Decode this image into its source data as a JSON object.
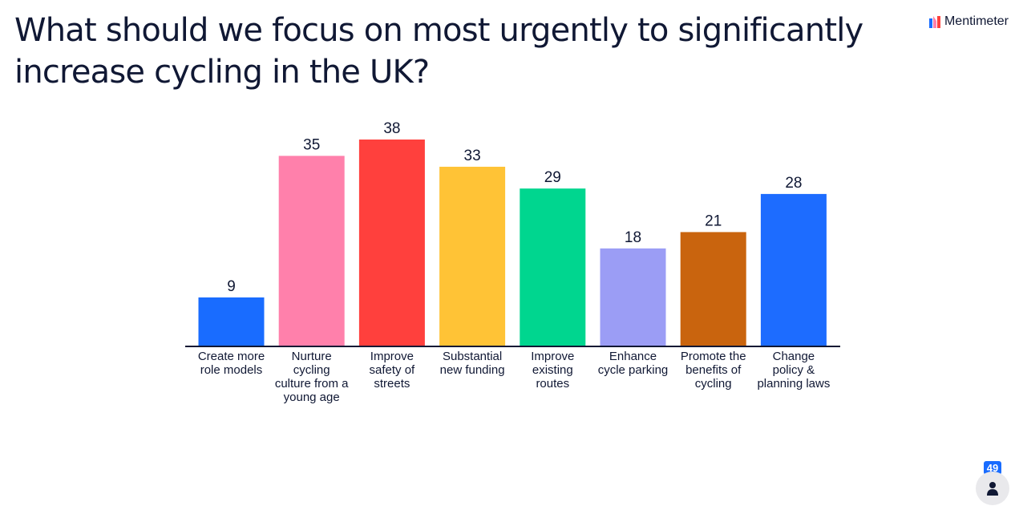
{
  "slide": {
    "title": "What should we focus on most urgently to significantly increase cycling in the UK?"
  },
  "brand": {
    "name": "Mentimeter"
  },
  "participants": {
    "count": "49"
  },
  "colors": {
    "text": "#101834",
    "accent": "#196cff"
  },
  "chart_data": {
    "type": "bar",
    "categories": [
      "Create more role models",
      "Nurture cycling culture from a young age",
      "Improve safety of streets",
      "Substantial new funding",
      "Improve existing routes",
      "Enhance cycle parking",
      "Promote the benefits of cycling",
      "Change policy & planning laws"
    ],
    "values": [
      9,
      35,
      38,
      33,
      29,
      18,
      21,
      28
    ],
    "colors": [
      "#196cff",
      "#ff80ab",
      "#ff403d",
      "#ffc336",
      "#00d68f",
      "#9b9df5",
      "#c9640e",
      "#1d6cff"
    ],
    "title": "",
    "xlabel": "",
    "ylabel": "",
    "data_labels": true,
    "grid": false
  }
}
